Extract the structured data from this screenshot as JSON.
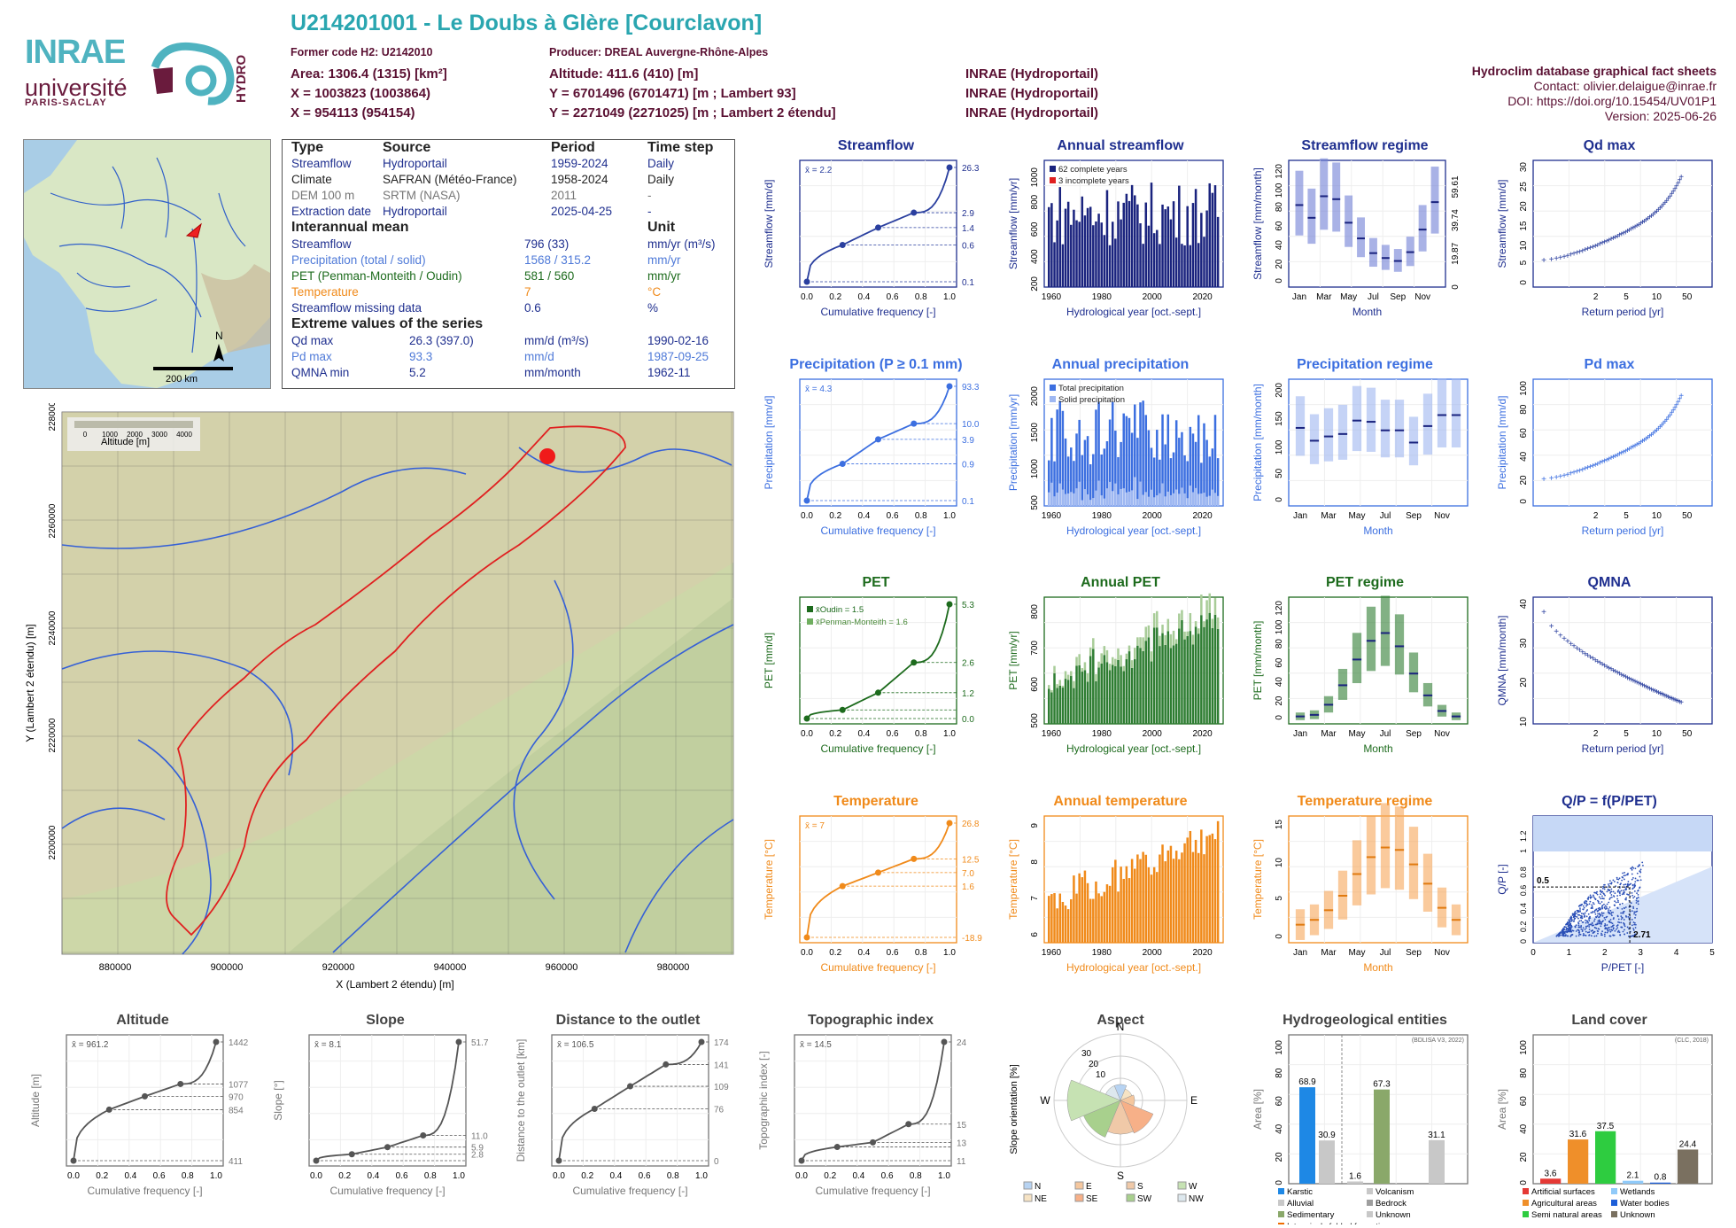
{
  "header": {
    "title": "U214201001 - Le Doubs à Glère [Courclavon]",
    "former_code": "Former code H2: U2142010",
    "producer": "Producer: DREAL Auvergne-Rhône-Alpes",
    "area": "Area: 1306.4 (1315) [km²]",
    "altitude": "Altitude: 411.6 (410) [m]",
    "x93": "X = 1003823 (1003864)",
    "y93": "Y = 6701496 (6701471) [m ; Lambert 93]",
    "x2": "X = 954113 (954154)",
    "y2": "Y = 2271049 (2271025) [m ; Lambert 2 étendu]",
    "src1": "INRAE (Hydroportail)",
    "src2": "INRAE (Hydroportail)",
    "src3": "INRAE (Hydroportail)",
    "sheet_title": "Hydroclim database graphical fact sheets",
    "contact": "Contact: olivier.delaigue@inrae.fr",
    "doi": "DOI: https://doi.org/10.15454/UV01P1",
    "version": "Version: 2025-06-26",
    "logo_inrae": "INRAE",
    "logo_univ": "université",
    "logo_ps": "PARIS-SACLAY",
    "logo_hydro": "HYDRO"
  },
  "info": {
    "h_type": "Type",
    "h_source": "Source",
    "h_period": "Period",
    "h_timestep": "Time step",
    "rows": [
      {
        "type": "Streamflow",
        "source": "Hydroportail",
        "period": "1959-2024",
        "step": "Daily"
      },
      {
        "type": "Climate",
        "source": "SAFRAN (Météo-France)",
        "period": "1958-2024",
        "step": "Daily"
      },
      {
        "type": "DEM 100 m",
        "source": "SRTM (NASA)",
        "period": "2011",
        "step": "-"
      },
      {
        "type": "Extraction date",
        "source": "Hydroportail",
        "period": "2025-04-25",
        "step": "-"
      }
    ],
    "interannual": "Interannual mean",
    "unit": "Unit",
    "means": [
      {
        "label": "Streamflow",
        "value": "796 (33)",
        "unit": "mm/yr (m³/s)"
      },
      {
        "label": "Precipitation (total / solid)",
        "value": "1568 / 315.2",
        "unit": "mm/yr"
      },
      {
        "label": "PET (Penman-Monteith / Oudin)",
        "value": "581 / 560",
        "unit": "mm/yr"
      },
      {
        "label": "Temperature",
        "value": "7",
        "unit": "°C"
      },
      {
        "label": "Streamflow missing data",
        "value": "0.6",
        "unit": "%"
      }
    ],
    "extreme": "Extreme values of the series",
    "extremes": [
      {
        "label": "Qd max",
        "value": "26.3 (397.0)",
        "unit": "mm/d (m³/s)",
        "date": "1990-02-16"
      },
      {
        "label": "Pd max",
        "value": "93.3",
        "unit": "mm/d",
        "date": "1987-09-25"
      },
      {
        "label": "QMNA min",
        "value": "5.2",
        "unit": "mm/month",
        "date": "1962-11"
      }
    ]
  },
  "map": {
    "scale": "200 km",
    "north": "N",
    "legend_title": "Altitude [m]",
    "legend_ticks": [
      "0",
      "1000",
      "2000",
      "3000",
      "4000"
    ],
    "xlabel": "X (Lambert 2 étendu) [m]",
    "ylabel": "Y (Lambert 2 étendu) [m]",
    "xticks": [
      "880000",
      "900000",
      "920000",
      "940000",
      "960000",
      "980000"
    ],
    "yticks": [
      "2280000",
      "2260000",
      "2240000",
      "2220000",
      "2200000"
    ]
  },
  "chart_data": [
    {
      "id": "streamflow",
      "type": "line",
      "title": "Streamflow",
      "ylabel": "Streamflow [mm/d]",
      "xlabel": "Cumulative frequency [-]",
      "annot": "x̄ = 2.2",
      "scale": "log",
      "right_ticks": [
        "26.3",
        "2.9",
        "1.4",
        "0.6",
        "0.1"
      ],
      "x": [
        0,
        0.25,
        0.5,
        0.75,
        1
      ],
      "y": [
        0.1,
        0.6,
        1.4,
        2.9,
        26.3
      ],
      "color": "#2a3f9f"
    },
    {
      "id": "annual_streamflow",
      "type": "bar",
      "title": "Annual streamflow",
      "ylabel": "Streamflow [mm/yr]",
      "xlabel": "Hydrological year [oct.-sept.]",
      "legend": [
        "62 complete years",
        "3 incomplete years"
      ],
      "yticks": [
        "200",
        "400",
        "600",
        "800",
        "1000"
      ],
      "xticks": [
        "1960",
        "1980",
        "2000",
        "2020"
      ],
      "ylim": [
        0,
        1200
      ],
      "color": "#1a237e"
    },
    {
      "id": "streamflow_regime",
      "type": "box",
      "title": "Streamflow regime",
      "ylabel": "Streamflow [mm/month]",
      "xlabel": "Month",
      "yticks": [
        "0",
        "20",
        "40",
        "60",
        "80",
        "100",
        "120"
      ],
      "right_ticks": [
        "59.61",
        "39.74",
        "19.87",
        "0"
      ],
      "categories": [
        "Jan",
        "Feb",
        "Mar",
        "Apr",
        "May",
        "Jun",
        "Jul",
        "Aug",
        "Sep",
        "Oct",
        "Nov",
        "Dec"
      ],
      "medians": [
        80,
        67,
        89,
        86,
        62,
        46,
        31,
        26,
        23,
        32,
        55,
        83
      ],
      "color": "#6f7fd6"
    },
    {
      "id": "qd_max",
      "type": "scatter",
      "title": "Qd max",
      "ylabel": "Streamflow [mm/d]",
      "xlabel": "Return period [yr]",
      "xticks": [
        "2",
        "5",
        "10",
        "50"
      ],
      "yticks": [
        "0",
        "5",
        "10",
        "15",
        "20",
        "25",
        "30"
      ],
      "color": "#2a3f9f"
    },
    {
      "id": "precipitation",
      "type": "line",
      "title": "Precipitation (P ≥ 0.1 mm)",
      "ylabel": "Precipitation [mm/d]",
      "xlabel": "Cumulative frequency [-]",
      "annot": "x̄ = 4.3",
      "right_ticks": [
        "93.3",
        "10.0",
        "3.9",
        "0.9",
        "0.1"
      ],
      "x": [
        0,
        0.25,
        0.5,
        0.75,
        1
      ],
      "y": [
        0.1,
        0.9,
        3.9,
        10.0,
        93.3
      ],
      "color": "#3c6fe0"
    },
    {
      "id": "annual_precipitation",
      "type": "bar",
      "title": "Annual precipitation",
      "ylabel": "Precipitation [mm/yr]",
      "xlabel": "Hydrological year [oct.-sept.]",
      "legend": [
        "Total precipitation",
        "Solid precipitation"
      ],
      "yticks": [
        "500",
        "1000",
        "1500",
        "2000"
      ],
      "xticks": [
        "1960",
        "1980",
        "2000",
        "2020"
      ],
      "color": "#3c6fe0"
    },
    {
      "id": "precipitation_regime",
      "type": "box",
      "title": "Precipitation regime",
      "ylabel": "Precipitation [mm/month]",
      "xlabel": "Month",
      "yticks": [
        "0",
        "50",
        "100",
        "150",
        "200"
      ],
      "categories": [
        "Jan",
        "Feb",
        "Mar",
        "Apr",
        "May",
        "Jun",
        "Jul",
        "Aug",
        "Sep",
        "Oct",
        "Nov",
        "Dec"
      ],
      "medians": [
        122,
        101,
        108,
        112,
        134,
        132,
        118,
        118,
        98,
        125,
        143,
        143
      ],
      "color": "#9fb6f0"
    },
    {
      "id": "pd_max",
      "type": "scatter",
      "title": "Pd max",
      "ylabel": "Precipitation [mm/d]",
      "xlabel": "Return period [yr]",
      "xticks": [
        "2",
        "5",
        "10",
        "50"
      ],
      "yticks": [
        "0",
        "20",
        "40",
        "60",
        "80",
        "100"
      ],
      "color": "#3c6fe0"
    },
    {
      "id": "pet",
      "type": "line",
      "title": "PET",
      "ylabel": "PET [mm/d]",
      "xlabel": "Cumulative frequency [-]",
      "legend": [
        "x̄Oudin = 1.5",
        "x̄Penman-Monteith = 1.6"
      ],
      "right_ticks": [
        "5.3",
        "2.6",
        "1.2",
        "0.0"
      ],
      "x": [
        0,
        0.25,
        0.5,
        0.75,
        1
      ],
      "y": [
        0,
        0.4,
        1.2,
        2.6,
        5.3
      ],
      "color": "#1d6b1d"
    },
    {
      "id": "annual_pet",
      "type": "bar",
      "title": "Annual PET",
      "ylabel": "PET [mm/yr]",
      "xlabel": "Hydrological year [oct.-sept.]",
      "yticks": [
        "500",
        "600",
        "700",
        "800"
      ],
      "xticks": [
        "1960",
        "1980",
        "2000",
        "2020"
      ],
      "color": "#2e7d32"
    },
    {
      "id": "pet_regime",
      "type": "box",
      "title": "PET regime",
      "ylabel": "PET [mm/month]",
      "xlabel": "Month",
      "yticks": [
        "0",
        "20",
        "40",
        "60",
        "80",
        "100",
        "120"
      ],
      "categories": [
        "Jan",
        "Feb",
        "Mar",
        "Apr",
        "May",
        "Jun",
        "Jul",
        "Aug",
        "Sep",
        "Oct",
        "Nov",
        "Dec"
      ],
      "medians": [
        5,
        7,
        20,
        45,
        78,
        102,
        112,
        95,
        60,
        32,
        12,
        5
      ],
      "color": "#2e7d32"
    },
    {
      "id": "qmna",
      "type": "scatter",
      "title": "QMNA",
      "ylabel": "QMNA [mm/month]",
      "xlabel": "Return period [yr]",
      "xticks": [
        "2",
        "5",
        "10",
        "50"
      ],
      "yticks": [
        "10",
        "20",
        "30",
        "40"
      ],
      "color": "#2a3f9f"
    },
    {
      "id": "temperature",
      "type": "line",
      "title": "Temperature",
      "ylabel": "Temperature [°C]",
      "xlabel": "Cumulative frequency [-]",
      "annot": "x̄ = 7",
      "right_ticks": [
        "26.8",
        "12.5",
        "7.0",
        "1.6",
        "-18.9"
      ],
      "x": [
        0,
        0.25,
        0.5,
        0.75,
        1
      ],
      "y": [
        -18.9,
        1.6,
        7.0,
        12.5,
        26.8
      ],
      "color": "#f08a1a"
    },
    {
      "id": "annual_temperature",
      "type": "bar",
      "title": "Annual temperature",
      "ylabel": "Temperature [°C]",
      "xlabel": "Hydrological year [oct.-sept.]",
      "yticks": [
        "6",
        "7",
        "8",
        "9"
      ],
      "xticks": [
        "1960",
        "1980",
        "2000",
        "2020"
      ],
      "color": "#f08a1a"
    },
    {
      "id": "temperature_regime",
      "type": "box",
      "title": "Temperature regime",
      "ylabel": "Temperature [°C]",
      "xlabel": "Month",
      "yticks": [
        "0",
        "5",
        "10",
        "15"
      ],
      "categories": [
        "Jan",
        "Feb",
        "Mar",
        "Apr",
        "May",
        "Jun",
        "Jul",
        "Aug",
        "Sep",
        "Oct",
        "Nov",
        "Dec"
      ],
      "medians": [
        -0.5,
        0.5,
        2.5,
        5.5,
        10,
        13.5,
        15.5,
        15,
        12,
        8,
        3,
        0.5
      ],
      "color": "#f6a75a"
    },
    {
      "id": "qp_ppet",
      "type": "scatter",
      "title": "Q/P = f(P/PET)",
      "ylabel": "Q/P [-]",
      "xlabel": "P/PET [-]",
      "xticks": [
        "0",
        "1",
        "2",
        "3",
        "4",
        "5"
      ],
      "yticks": [
        "0",
        "0.2",
        "0.4",
        "0.6",
        "0.8",
        "1",
        "1.2"
      ],
      "annot_x": "2.71",
      "annot_y": "0.5",
      "color": "#2a4fb7"
    },
    {
      "id": "altitude",
      "type": "line",
      "title": "Altitude",
      "ylabel": "Altitude [m]",
      "xlabel": "Cumulative frequency [-]",
      "annot": "x̄ = 961.2",
      "right_ticks": [
        "1442",
        "1077",
        "970",
        "854",
        "411"
      ],
      "x": [
        0,
        0.25,
        0.5,
        0.75,
        1
      ],
      "y": [
        411,
        854,
        970,
        1077,
        1442
      ],
      "color": "#555555"
    },
    {
      "id": "slope",
      "type": "line",
      "title": "Slope",
      "ylabel": "Slope [°]",
      "xlabel": "Cumulative frequency [-]",
      "annot": "x̄ = 8.1",
      "right_ticks": [
        "51.7",
        "11.0",
        "5.9",
        "2.8"
      ],
      "x": [
        0,
        0.25,
        0.5,
        0.75,
        1
      ],
      "y": [
        0,
        2.8,
        5.9,
        11.0,
        51.7
      ],
      "color": "#555555"
    },
    {
      "id": "distance",
      "type": "line",
      "title": "Distance to the outlet",
      "ylabel": "Distance to the outlet [km]",
      "xlabel": "Cumulative frequency [-]",
      "annot": "x̄ = 106.5",
      "right_ticks": [
        "174",
        "141",
        "109",
        "76",
        "0"
      ],
      "x": [
        0,
        0.25,
        0.5,
        0.75,
        1
      ],
      "y": [
        0,
        76,
        109,
        141,
        174
      ],
      "color": "#555555"
    },
    {
      "id": "topo_index",
      "type": "line",
      "title": "Topographic index",
      "ylabel": "Topographic index [-]",
      "xlabel": "Cumulative frequency [-]",
      "annot": "x̄ = 14.5",
      "right_ticks": [
        "24",
        "15",
        "13",
        "11"
      ],
      "x": [
        0,
        0.25,
        0.5,
        0.75,
        1
      ],
      "y": [
        11,
        12.5,
        13,
        15,
        24
      ],
      "color": "#555555"
    },
    {
      "id": "aspect",
      "type": "pie",
      "title": "Aspect",
      "ylabel": "Slope orientation [%]",
      "labels": [
        "N",
        "NE",
        "E",
        "SE",
        "S",
        "SW",
        "W",
        "NW"
      ],
      "directions": [
        "N",
        "E",
        "S",
        "W"
      ],
      "rings": [
        "10",
        "20",
        "30"
      ],
      "colors": [
        "#b7d3f2",
        "#f6e3c4",
        "#f5c79e",
        "#f7b088",
        "#f0c9a8",
        "#a8d08d",
        "#c6e2b3",
        "#dde8ee"
      ]
    },
    {
      "id": "hydrogeology",
      "type": "bar",
      "title": "Hydrogeological entities",
      "ylabel": "Area [%]",
      "source": "(BDLISA V3, 2022)",
      "categories": [
        "Karstic",
        "Alluvial",
        "Sedimentary",
        "Volcanism",
        "Bedrock",
        "Unknown"
      ],
      "values": [
        68.9,
        30.9,
        1.6,
        67.3,
        0,
        31.1
      ],
      "labels": [
        "68.9",
        "30.9",
        "1.6",
        "67.3",
        "31.1"
      ],
      "legend": [
        "Karstic",
        "Volcanism",
        "Alluvial",
        "Bedrock",
        "Sedimentary",
        "Unknown",
        "Intensively folded formation"
      ],
      "yticks": [
        "0",
        "20",
        "40",
        "60",
        "80",
        "100"
      ]
    },
    {
      "id": "land_cover",
      "type": "bar",
      "title": "Land cover",
      "ylabel": "Area [%]",
      "source": "(CLC, 2018)",
      "categories": [
        "Artificial surfaces",
        "Agricultural areas",
        "Semi natural areas",
        "Wetlands",
        "Water bodies",
        "Unknown"
      ],
      "values": [
        3.6,
        31.6,
        37.5,
        2.1,
        0.8,
        24.4
      ],
      "labels": [
        "3.6",
        "31.6",
        "37.5",
        "2.1",
        "0.8",
        "24.4"
      ],
      "legend": [
        "Artificial surfaces",
        "Wetlands",
        "Agricultural areas",
        "Water bodies",
        "Semi natural areas",
        "Unknown"
      ],
      "yticks": [
        "0",
        "20",
        "40",
        "60",
        "80",
        "100"
      ]
    }
  ]
}
